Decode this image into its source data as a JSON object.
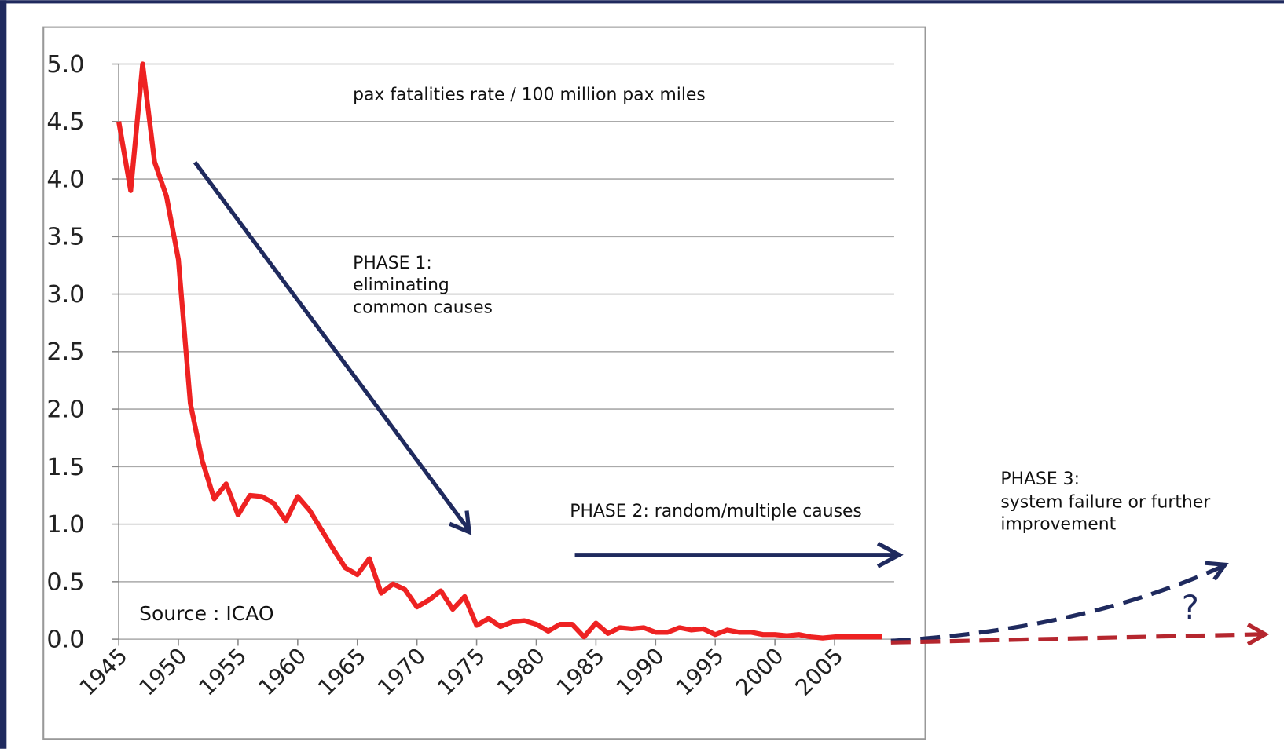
{
  "chart_data": {
    "type": "line",
    "x": [
      1945,
      1946,
      1947,
      1948,
      1949,
      1950,
      1951,
      1952,
      1953,
      1954,
      1955,
      1956,
      1957,
      1958,
      1959,
      1960,
      1961,
      1962,
      1963,
      1964,
      1965,
      1966,
      1967,
      1968,
      1969,
      1970,
      1971,
      1972,
      1973,
      1974,
      1975,
      1976,
      1977,
      1978,
      1979,
      1980,
      1981,
      1982,
      1983,
      1984,
      1985,
      1986,
      1987,
      1988,
      1989,
      1990,
      1991,
      1992,
      1993,
      1994,
      1995,
      1996,
      1997,
      1998,
      1999,
      2000,
      2001,
      2002,
      2003,
      2004,
      2005,
      2006,
      2007,
      2008,
      2009
    ],
    "values": [
      4.5,
      3.9,
      5.0,
      4.15,
      3.85,
      3.3,
      2.05,
      1.55,
      1.22,
      1.35,
      1.08,
      1.25,
      1.24,
      1.18,
      1.03,
      1.24,
      1.12,
      0.95,
      0.78,
      0.62,
      0.56,
      0.7,
      0.4,
      0.48,
      0.43,
      0.28,
      0.34,
      0.42,
      0.26,
      0.37,
      0.12,
      0.18,
      0.11,
      0.15,
      0.16,
      0.13,
      0.07,
      0.13,
      0.13,
      0.02,
      0.14,
      0.05,
      0.1,
      0.09,
      0.1,
      0.06,
      0.06,
      0.1,
      0.08,
      0.09,
      0.04,
      0.08,
      0.06,
      0.06,
      0.04,
      0.04,
      0.03,
      0.04,
      0.02,
      0.01,
      0.02,
      0.02,
      0.02,
      0.02,
      0.02
    ],
    "color": "#ee2222",
    "xlim": [
      1945,
      2010
    ],
    "xticks": [
      1945,
      1950,
      1955,
      1960,
      1965,
      1970,
      1975,
      1980,
      1985,
      1990,
      1995,
      2000,
      2005
    ],
    "ylim": [
      0,
      5
    ],
    "yticks": [
      {
        "value": 0,
        "label": "0.0"
      },
      {
        "value": 0.5,
        "label": "0.5"
      },
      {
        "value": 1,
        "label": "1.0"
      },
      {
        "value": 1.5,
        "label": "1.5"
      },
      {
        "value": 2,
        "label": "2.0"
      },
      {
        "value": 2.5,
        "label": "2.5"
      },
      {
        "value": 3,
        "label": "3.0"
      },
      {
        "value": 3.5,
        "label": "3.5"
      },
      {
        "value": 4,
        "label": "4.0"
      },
      {
        "value": 4.5,
        "label": "4.5"
      },
      {
        "value": 5,
        "label": "5.0"
      }
    ],
    "grid": true,
    "annotations": {
      "units": "pax fatalities rate / 100 million pax miles",
      "source": "Source : ICAO",
      "phase1": [
        "PHASE 1:",
        "eliminating",
        "common causes"
      ],
      "phase2": "PHASE 2: random/multiple causes",
      "phase3": [
        "PHASE 3:",
        "system failure or further",
        "improvement"
      ],
      "question": "?"
    }
  }
}
